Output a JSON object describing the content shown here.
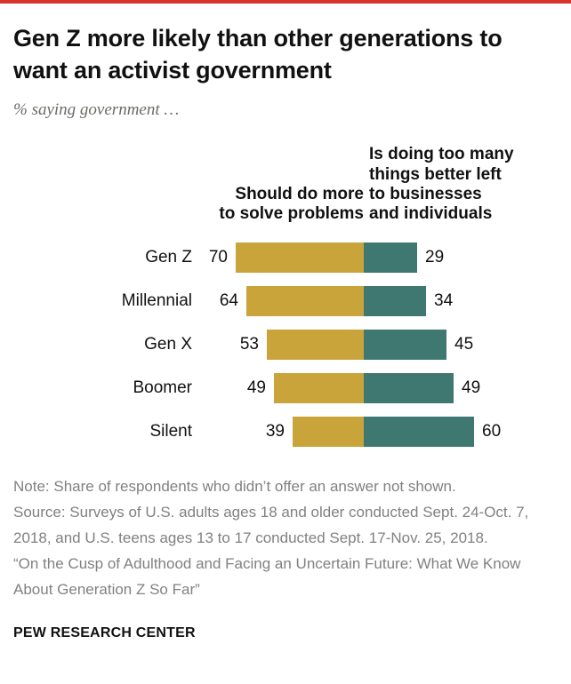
{
  "accent": {
    "top_bar_color": "#d6342c"
  },
  "header": {
    "title": "Gen Z more likely than other generations to want an activist government",
    "subtitle": "% saying government …"
  },
  "col_headers": {
    "left": "Should do more\nto solve problems",
    "right": "Is doing too many\nthings better left\nto businesses\nand individuals"
  },
  "chart_data": {
    "type": "bar",
    "variant": "diverging-horizontal-stacked",
    "categories": [
      "Gen Z",
      "Millennial",
      "Gen X",
      "Boomer",
      "Silent"
    ],
    "series": [
      {
        "name": "Should do more to solve problems",
        "color": "#C9A43B",
        "values": [
          70,
          64,
          53,
          49,
          39
        ]
      },
      {
        "name": "Is doing too many things better left to businesses and individuals",
        "color": "#3E7870",
        "values": [
          29,
          34,
          45,
          49,
          60
        ]
      }
    ],
    "value_unit": "%",
    "xlim": [
      0,
      100
    ],
    "legend_position": "above-bars",
    "grid": false
  },
  "notes": {
    "note": "Note: Share of respondents who didn’t offer an answer not shown.",
    "source": "Source: Surveys of U.S. adults ages 18 and older conducted Sept. 24-Oct. 7, 2018, and U.S. teens ages 13 to 17 conducted Sept. 17-Nov. 25, 2018.",
    "citation": "“On the Cusp of Adulthood and Facing an Uncertain Future: What We Know About Generation Z So Far”"
  },
  "footer": {
    "brand": "PEW RESEARCH CENTER"
  }
}
